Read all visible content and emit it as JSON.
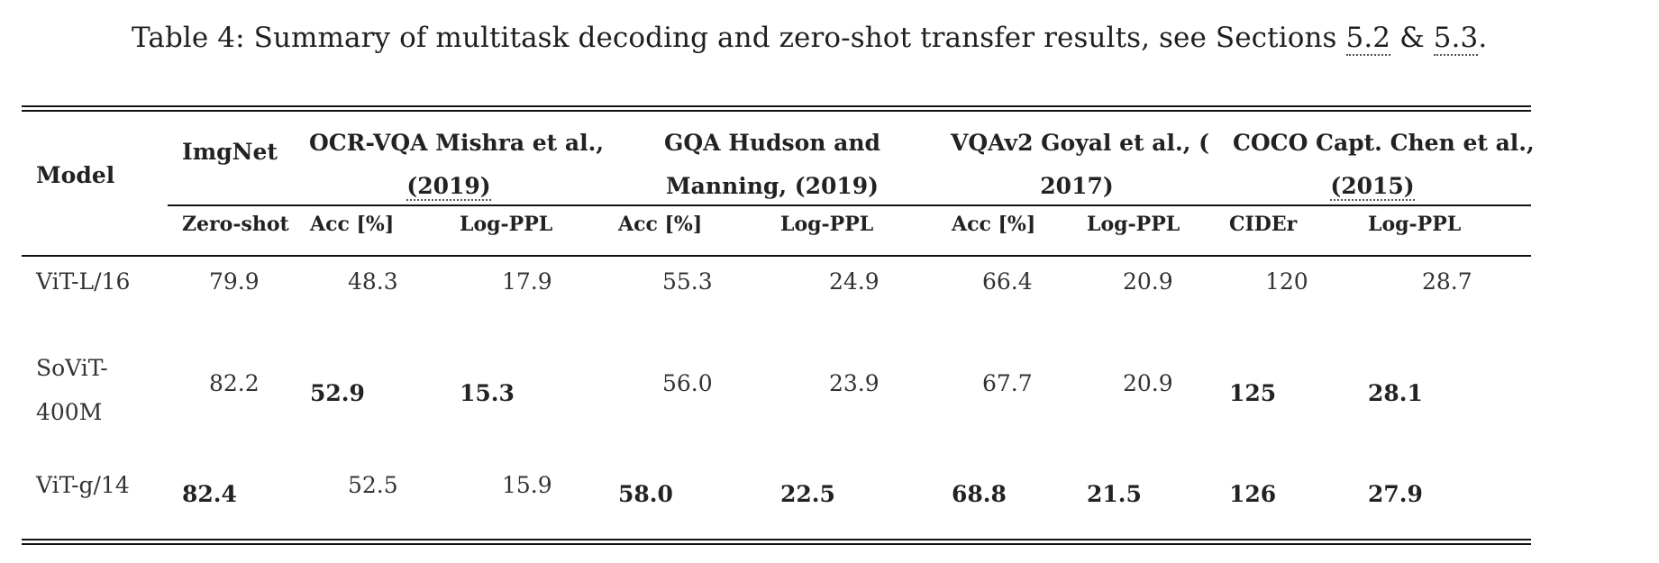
{
  "caption": {
    "prefix": "Table 4:  Summary of multitask decoding and zero-shot transfer results, see Sections ",
    "ref1": "5.2",
    "amp": " & ",
    "ref2": "5.3",
    "suffix": "."
  },
  "header": {
    "model": "Model",
    "imgnet": "ImgNet",
    "ocr_l1": "OCR-VQA Mishra et al.,",
    "ocr_l2": "(2019)",
    "gqa_l1": "GQA Hudson and",
    "gqa_l2": "Manning, (2019)",
    "vqa_l1": "VQAv2 Goyal et al., (",
    "vqa_l2": "2017)",
    "coco_l1": "COCO Capt. Chen et al.,",
    "coco_l2": "(2015)"
  },
  "subheader": {
    "zeroshot": "Zero-shot",
    "ocr_acc": "Acc [%]",
    "ocr_ppl": "Log-PPL",
    "gqa_acc": "Acc [%]",
    "gqa_ppl": "Log-PPL",
    "vqa_acc": "Acc [%]",
    "vqa_ppl": "Log-PPL",
    "coco_cider": "CIDEr",
    "coco_ppl": "Log-PPL"
  },
  "rows": [
    {
      "model": "ViT-L/16",
      "imgnet": "79.9",
      "ocr_acc": "48.3",
      "ocr_ppl": "17.9",
      "gqa_acc": "55.3",
      "gqa_ppl": "24.9",
      "vqa_acc": "66.4",
      "vqa_ppl": "20.9",
      "coco_cider": "120",
      "coco_ppl": "28.7"
    },
    {
      "model_l1": "SoViT-",
      "model_l2": "400M",
      "imgnet": "82.2",
      "ocr_acc": "52.9",
      "ocr_ppl": "15.3",
      "gqa_acc": "56.0",
      "gqa_ppl": "23.9",
      "vqa_acc": "67.7",
      "vqa_ppl": "20.9",
      "coco_cider": "125",
      "coco_ppl": "28.1"
    },
    {
      "model": "ViT-g/14",
      "imgnet": "82.4",
      "ocr_acc": "52.5",
      "ocr_ppl": "15.9",
      "gqa_acc": "58.0",
      "gqa_ppl": "22.5",
      "vqa_acc": "68.8",
      "vqa_ppl": "21.5",
      "coco_cider": "126",
      "coco_ppl": "27.9"
    }
  ]
}
